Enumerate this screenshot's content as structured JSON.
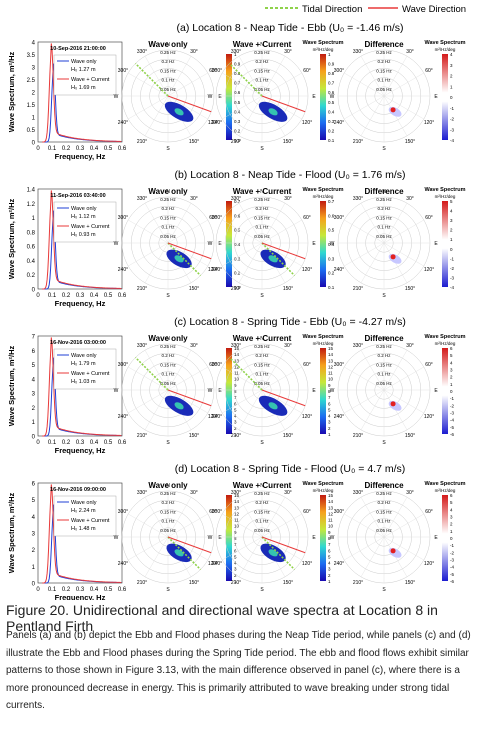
{
  "legend": {
    "tidal": "Tidal Direction",
    "wave": "Wave Direction",
    "tidal_color": "#8fd24a",
    "wave_color": "#e83a3a"
  },
  "labels": {
    "col_wave_only": "Wave only",
    "col_wave_current": "Wave + Current",
    "col_difference": "Difference",
    "cbar_title": "Wave Spectrum",
    "cbar_unit": "m²/Hz/deg",
    "ylabel": "Wave Spectrum, m²/Hz",
    "xlabel": "Frequency, Hz",
    "freq_rings": [
      "0.05 Hz",
      "0.1 Hz",
      "0.15 Hz",
      "0.2 Hz",
      "0.25 Hz"
    ],
    "compass": [
      "N",
      "30°",
      "60°",
      "E",
      "120°",
      "150°",
      "S",
      "210°",
      "240°",
      "W",
      "300°",
      "330°"
    ]
  },
  "panels": [
    {
      "title": "(a) Location 8 - Neap Tide - Ebb (U₀ = -1.46 m/s)",
      "timestamp": "10-Sep-2016 21:00:00",
      "wave_only_label": "Wave only",
      "wave_only_hm0": "H₀ 1.27 m",
      "wave_current_label": "Wave + Current",
      "wave_current_hm0": "H₀ 1.69 m",
      "cbar_ticks": [
        "1",
        "0.9",
        "0.8",
        "0.7",
        "0.6",
        "0.5",
        "0.4",
        "0.3",
        "0.2",
        "0.1"
      ],
      "diff_ticks": [
        "4",
        "3",
        "2",
        "1",
        "0",
        "-1",
        "-2",
        "-3",
        "-4"
      ],
      "tidal_dir_deg": 315,
      "wave_dir_deg": 110,
      "ymax": 4,
      "yticks": [
        "0",
        "0.5",
        "1",
        "1.5",
        "2",
        "2.5",
        "3",
        "3.5",
        "4"
      ]
    },
    {
      "title": "(b) Location 8 - Neap Tide - Flood (U₀ = 1.76 m/s)",
      "timestamp": "11-Sep-2016 03:40:00",
      "wave_only_label": "Wave only",
      "wave_only_hm0": "H₀ 1.12 m",
      "wave_current_label": "Wave + Current",
      "wave_current_hm0": "H₀ 0.93 m",
      "cbar_ticks": [
        "0.7",
        "0.6",
        "0.5",
        "0.4",
        "0.3",
        "0.2",
        "0.1"
      ],
      "diff_ticks": [
        "5",
        "4",
        "3",
        "2",
        "1",
        "0",
        "-1",
        "-2",
        "-3",
        "-4"
      ],
      "tidal_dir_deg": 135,
      "wave_dir_deg": 110,
      "ymax": 1.4,
      "yticks": [
        "0",
        "0.2",
        "0.4",
        "0.6",
        "0.8",
        "1",
        "1.2",
        "1.4"
      ]
    },
    {
      "title": "(c) Location 8 - Spring Tide - Ebb (U₀ = -4.27 m/s)",
      "timestamp": "16-Nov-2016 03:00:00",
      "wave_only_label": "Wave only",
      "wave_only_hm0": "H₀ 1.79 m",
      "wave_current_label": "Wave + Current",
      "wave_current_hm0": "H₀ 1.03 m",
      "cbar_ticks": [
        "15",
        "14",
        "13",
        "12",
        "11",
        "10",
        "9",
        "8",
        "7",
        "6",
        "5",
        "4",
        "3",
        "2",
        "1"
      ],
      "diff_ticks": [
        "6",
        "5",
        "4",
        "3",
        "2",
        "1",
        "0",
        "-1",
        "-2",
        "-3",
        "-4",
        "-5",
        "-6"
      ],
      "tidal_dir_deg": 315,
      "wave_dir_deg": 110,
      "ymax": 7,
      "yticks": [
        "0",
        "1",
        "2",
        "3",
        "4",
        "5",
        "6",
        "7"
      ]
    },
    {
      "title": "(d) Location 8 - Spring Tide - Flood (U₀ = 4.7 m/s)",
      "timestamp": "16-Nov-2016 09:00:00",
      "wave_only_label": "Wave only",
      "wave_only_hm0": "H₀ 2.24 m",
      "wave_current_label": "Wave + Current",
      "wave_current_hm0": "H₀ 1.48 m",
      "cbar_ticks": [
        "15",
        "14",
        "13",
        "12",
        "11",
        "10",
        "9",
        "8",
        "7",
        "6",
        "5",
        "4",
        "3",
        "2",
        "1"
      ],
      "diff_ticks": [
        "6",
        "5",
        "4",
        "3",
        "2",
        "1",
        "0",
        "-1",
        "-2",
        "-3",
        "-4",
        "-5",
        "-6"
      ],
      "tidal_dir_deg": 135,
      "wave_dir_deg": 110,
      "ymax": 6,
      "yticks": [
        "0",
        "1",
        "2",
        "3",
        "4",
        "5",
        "6"
      ]
    }
  ],
  "caption": {
    "title": "Figure 20.  Unidirectional and directional wave spectra at Location 8 in Pentland Firth",
    "body": "Panels (a) and (b) depict the Ebb and Flood phases during the Neap Tide period, while panels (c) and (d) illustrate the Ebb and Flood phases during the Spring Tide period. The ebb and flood flows exhibit similar patterns to those shown in Figure 3.13, with the main difference observed in panel (c), where there is a more pronounced decrease in energy. This is primarily attributed to wave breaking under strong tidal currents."
  }
}
